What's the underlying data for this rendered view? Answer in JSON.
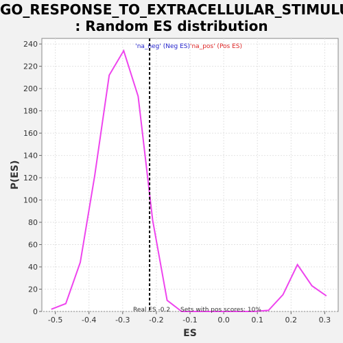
{
  "title_line1": "GO_RESPONSE_TO_EXTRACELLULAR_STIMULUS",
  "title_line2": ": Random ES distribution",
  "colors": {
    "curve": "#ee44ee",
    "neg": "#2222cc",
    "pos": "#dd2222",
    "text": "#333333"
  },
  "chart_data": {
    "type": "line",
    "xlabel": "ES",
    "ylabel": "P(ES)",
    "xlim": [
      -0.54,
      0.34
    ],
    "ylim": [
      0,
      245
    ],
    "x_ticks": [
      -0.5,
      -0.4,
      -0.3,
      -0.2,
      -0.1,
      0.0,
      0.1,
      0.2,
      0.3
    ],
    "x_tick_labels": [
      "-0.5",
      "-0.4",
      "-0.3",
      "-0.2",
      "-0.1",
      "0.0",
      "0.1",
      "0.2",
      "0.3"
    ],
    "y_ticks": [
      0,
      20,
      40,
      60,
      80,
      100,
      120,
      140,
      160,
      180,
      200,
      220,
      240
    ],
    "grid": true,
    "series": [
      {
        "x": [
          -0.512,
          -0.469,
          -0.426,
          -0.383,
          -0.34,
          -0.297,
          -0.254,
          -0.211,
          -0.168,
          -0.125,
          -0.082,
          -0.039,
          0.004,
          0.047,
          0.09,
          0.133,
          0.176,
          0.219,
          0.262,
          0.305
        ],
        "y": [
          2,
          7,
          44,
          122,
          212,
          234,
          193,
          82,
          10,
          0,
          0,
          0,
          0,
          0,
          0,
          1,
          15,
          42,
          23,
          14
        ]
      }
    ],
    "real_es": -0.22,
    "annotations": {
      "neg_label": "'na_neg' (Neg ES)",
      "pos_label": "'na_pos' (Pos ES)",
      "real_es_label": "Real ES -0.2",
      "pos_scores_label": "Sets with pos scores: 10%"
    }
  }
}
